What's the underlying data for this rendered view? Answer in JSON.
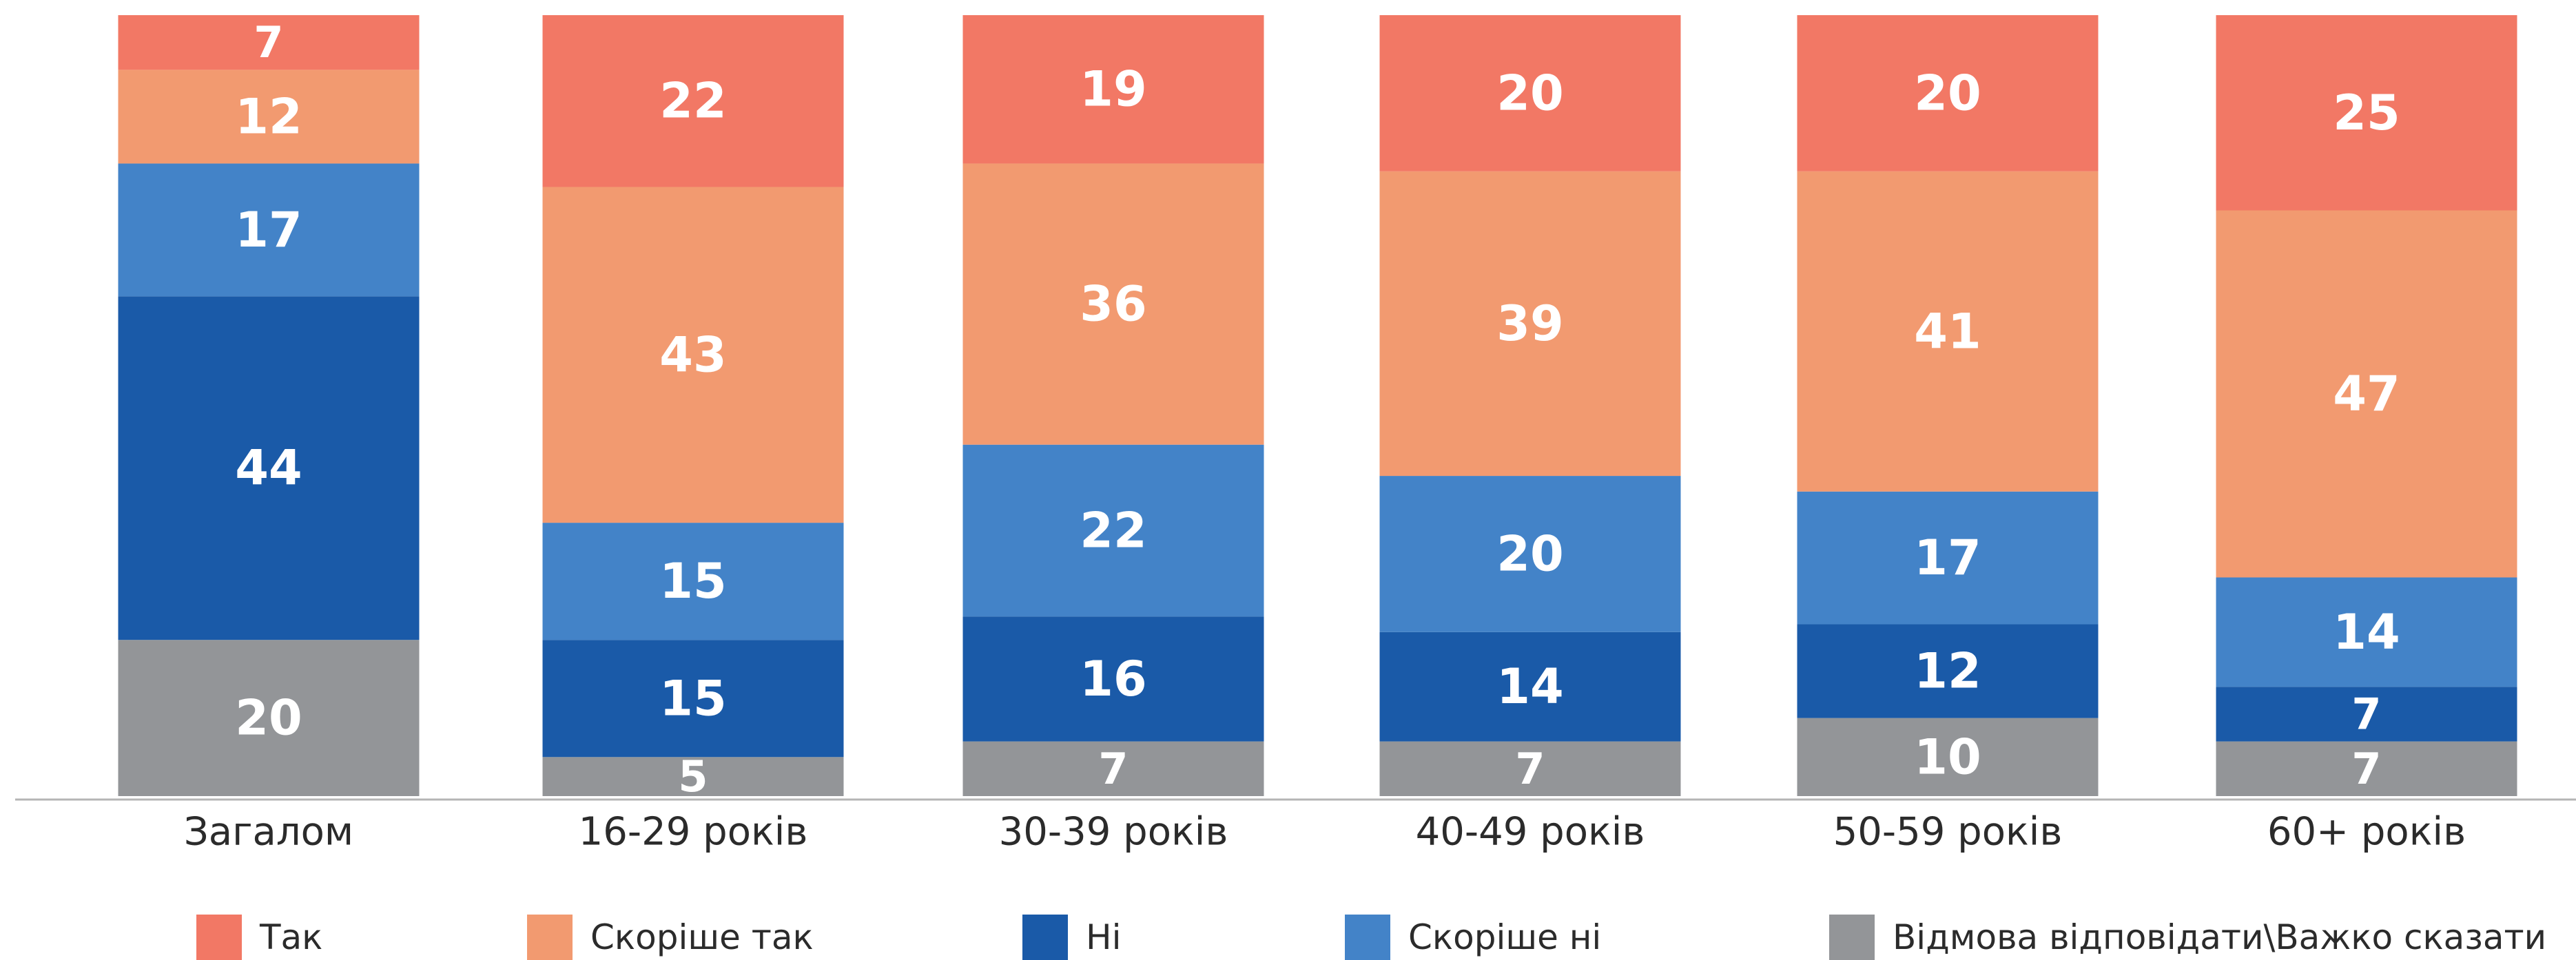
{
  "chart_data": {
    "type": "bar",
    "stacked": true,
    "categories": [
      "Загалом",
      "16-29 років",
      "30-39 років",
      "40-49 років",
      "50-59 років",
      "60+ років"
    ],
    "series": [
      {
        "name": "Відмова відповідати\\Важко сказати",
        "color": "#939598",
        "values": [
          20,
          5,
          7,
          7,
          10,
          7
        ]
      },
      {
        "name": "Ні",
        "color": "#1a5aa8",
        "values": [
          44,
          15,
          16,
          14,
          12,
          7
        ]
      },
      {
        "name": "Скоріше ні",
        "color": "#4383c8",
        "values": [
          17,
          15,
          22,
          20,
          17,
          14
        ]
      },
      {
        "name": "Скоріше так",
        "color": "#f29a70",
        "values": [
          12,
          43,
          36,
          39,
          41,
          47
        ]
      },
      {
        "name": "Так",
        "color": "#f27865",
        "values": [
          7,
          22,
          19,
          20,
          20,
          25
        ]
      }
    ],
    "ylim": [
      0,
      100
    ],
    "grid": false,
    "legend_position": "bottom"
  },
  "legend_order": [
    "Так",
    "Скоріше так",
    "Ні",
    "Скоріше ні",
    "Відмова відповідати\\Важко сказати"
  ]
}
